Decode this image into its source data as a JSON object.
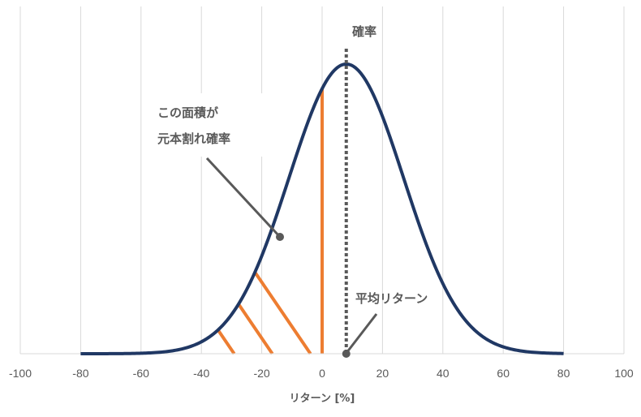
{
  "chart_data": {
    "type": "line",
    "xlabel": "リターン [%]",
    "xlim": [
      -100,
      100
    ],
    "x_ticks": [
      -100,
      -80,
      -60,
      -40,
      -20,
      0,
      20,
      40,
      60,
      80,
      100
    ],
    "series": [
      {
        "mean": 8,
        "std": 19,
        "x_range": [
          -80,
          80
        ],
        "color": "#203864"
      }
    ],
    "shaded_region": {
      "from": -42,
      "to": 0,
      "hatch_color": "#ED7D31"
    },
    "mean_line": {
      "x": 8,
      "style": "dotted",
      "color": "#595959"
    },
    "grid": {
      "vertical": true,
      "horizontal": false
    },
    "annotations": {
      "probability": "確率",
      "area_line1": "この面積が",
      "area_line2": "元本割れ確率",
      "mean_return": "平均リターン"
    }
  }
}
